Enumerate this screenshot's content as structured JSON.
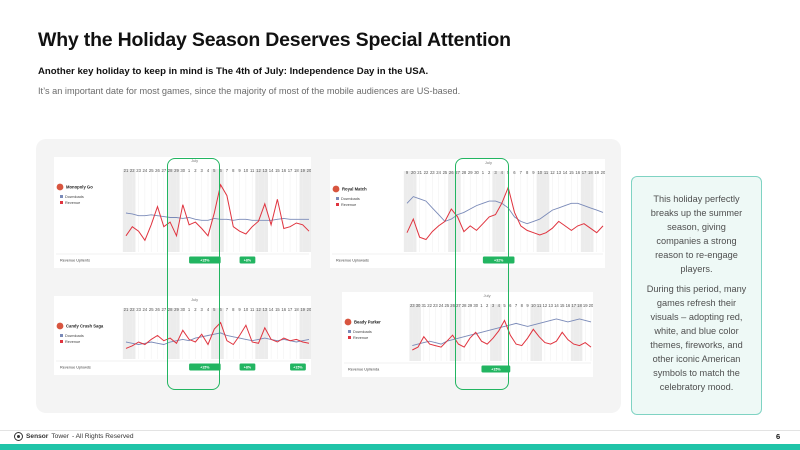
{
  "page": {
    "title": "Why the Holiday Season Deserves Special Attention",
    "subtitle": "Another key holiday to keep in mind is The 4th of July: Independence Day in the USA.",
    "body": "It’s an important date for most games, since the majority of most of the mobile audiences are US-based.",
    "footer": {
      "brand": "Sensor",
      "brand_rest": "Tower",
      "rights": "- All Rights Reserved",
      "page_number": "6"
    }
  },
  "callout": {
    "paragraphs": [
      "This holiday perfectly breaks up the summer season, giving companies a strong reason to re-engage players.",
      "During this period, many games refresh their visuals – adopting red, white, and blue color themes, fireworks, and other iconic American symbols to match the celebratory mood."
    ]
  },
  "colors": {
    "downloads": "#7a8ab8",
    "revenue": "#e0343f",
    "highlight": "#22b561",
    "callout_border": "#7fd3c3",
    "brand_bar": "#20c4a8"
  },
  "chart_data": [
    {
      "type": "line",
      "game": "Monopoly Go",
      "month": "July",
      "x": [
        "21",
        "22",
        "23",
        "24",
        "25",
        "26",
        "27",
        "28",
        "29",
        "30",
        "1",
        "2",
        "3",
        "4",
        "5",
        "6",
        "7",
        "8",
        "9",
        "10",
        "11",
        "12",
        "13",
        "14",
        "15",
        "16",
        "17",
        "18",
        "19",
        "20"
      ],
      "series": [
        {
          "name": "Downloads",
          "values": [
            55,
            54,
            52,
            52,
            53,
            52,
            51,
            50,
            50,
            49,
            50,
            48,
            47,
            47,
            49,
            48,
            48,
            47,
            48,
            48,
            47,
            47,
            47,
            47,
            48,
            49,
            48,
            48,
            48,
            48
          ]
        },
        {
          "name": "Revenue",
          "values": [
            30,
            40,
            35,
            25,
            42,
            62,
            40,
            45,
            30,
            64,
            42,
            45,
            38,
            30,
            55,
            86,
            74,
            40,
            35,
            32,
            40,
            46,
            65,
            42,
            70,
            38,
            40,
            44,
            42,
            35
          ]
        }
      ],
      "footer_label": "Revenue Uplients",
      "badges": [
        "+15%",
        "+8%"
      ]
    },
    {
      "type": "line",
      "game": "Royal Match",
      "month": "July",
      "x": [
        "9",
        "20",
        "21",
        "22",
        "23",
        "24",
        "25",
        "26",
        "27",
        "28",
        "29",
        "30",
        "1",
        "2",
        "3",
        "4",
        "5",
        "6",
        "7",
        "8",
        "9",
        "10",
        "11",
        "12",
        "13",
        "14",
        "15",
        "16",
        "17",
        "18",
        "19",
        "20"
      ],
      "series": [
        {
          "name": "Downloads",
          "values": [
            60,
            66,
            64,
            62,
            56,
            50,
            44,
            46,
            50,
            52,
            55,
            58,
            60,
            62,
            62,
            60,
            56,
            48,
            44,
            42,
            44,
            46,
            50,
            54,
            56,
            58,
            60,
            60,
            58,
            56,
            54,
            52
          ]
        },
        {
          "name": "Revenue",
          "values": [
            34,
            46,
            30,
            28,
            35,
            40,
            44,
            55,
            48,
            35,
            40,
            36,
            42,
            48,
            50,
            60,
            74,
            52,
            40,
            36,
            34,
            32,
            34,
            38,
            44,
            40,
            36,
            40,
            42,
            38,
            34,
            40
          ]
        }
      ],
      "footer_label": "Revenue Uplowads",
      "badges": [
        "+32%"
      ]
    },
    {
      "type": "line",
      "game": "Candy Crush Saga",
      "month": "July",
      "x": [
        "21",
        "22",
        "23",
        "24",
        "25",
        "26",
        "27",
        "28",
        "29",
        "30",
        "1",
        "2",
        "3",
        "4",
        "5",
        "6",
        "7",
        "8",
        "9",
        "10",
        "11",
        "12",
        "13",
        "14",
        "15",
        "16",
        "17",
        "18",
        "19",
        "20"
      ],
      "series": [
        {
          "name": "Downloads",
          "values": [
            40,
            38,
            36,
            38,
            40,
            38,
            36,
            40,
            42,
            44,
            42,
            46,
            48,
            50,
            52,
            54,
            50,
            48,
            46,
            44,
            42,
            44,
            46,
            44,
            42,
            44,
            42,
            40,
            42,
            44
          ]
        },
        {
          "name": "Revenue",
          "values": [
            30,
            34,
            40,
            36,
            44,
            50,
            42,
            46,
            38,
            58,
            44,
            40,
            52,
            36,
            60,
            70,
            42,
            36,
            50,
            66,
            40,
            38,
            62,
            44,
            40,
            46,
            42,
            44,
            40,
            38
          ]
        }
      ],
      "footer_label": "Revenue Uplowds",
      "badges": [
        "+15%",
        "+8%",
        "+15%"
      ]
    },
    {
      "type": "line",
      "game": "Beady Parker",
      "month": "July",
      "x": [
        "23",
        "30",
        "31",
        "22",
        "23",
        "24",
        "25",
        "26",
        "27",
        "28",
        "29",
        "30",
        "1",
        "2",
        "3",
        "4",
        "5",
        "6",
        "7",
        "8",
        "9",
        "10",
        "11",
        "12",
        "13",
        "14",
        "15",
        "16",
        "17",
        "18",
        "19",
        "20"
      ],
      "series": [
        {
          "name": "Downloads",
          "values": [
            38,
            40,
            42,
            44,
            42,
            40,
            44,
            46,
            48,
            50,
            52,
            54,
            56,
            58,
            60,
            62,
            64,
            66,
            68,
            66,
            64,
            66,
            68,
            70,
            72,
            74,
            72,
            70,
            72,
            74,
            72,
            70
          ]
        },
        {
          "name": "Revenue",
          "values": [
            32,
            36,
            50,
            40,
            38,
            36,
            44,
            52,
            40,
            36,
            48,
            56,
            44,
            40,
            48,
            58,
            72,
            52,
            40,
            38,
            48,
            60,
            50,
            42,
            40,
            44,
            56,
            46,
            40,
            38,
            42,
            36
          ]
        }
      ],
      "footer_label": "Revenue Uplienda",
      "badges": [
        "+15%"
      ]
    }
  ]
}
